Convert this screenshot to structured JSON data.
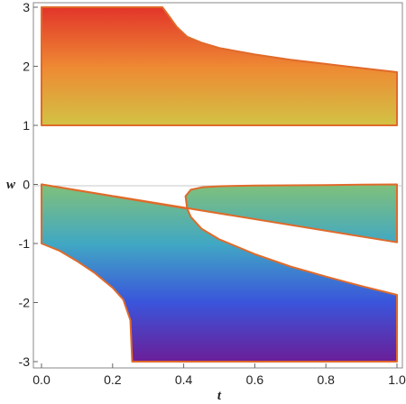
{
  "chart_data": {
    "type": "area",
    "title": "",
    "xlabel": "t",
    "ylabel": "w",
    "xlim": [
      0,
      1
    ],
    "ylim": [
      -3,
      3
    ],
    "x_ticks": [
      "0.0",
      "0.2",
      "0.4",
      "0.6",
      "0.8",
      "1.0"
    ],
    "y_ticks": [
      "-3",
      "-2",
      "-1",
      "0",
      "1",
      "2",
      "3"
    ],
    "grid": false,
    "colors": {
      "region_fill": "spectral gradient by w (red at 3, yellow at 1, green at 0, blue at -2, purple at -3)",
      "region_outline": "#e06a2a",
      "zero_line": "#c8c8c8",
      "frame": "#888888"
    },
    "regions": [
      {
        "name": "",
        "boundary_t": [
          0,
          0.34,
          0.36,
          0.38,
          0.41,
          0.45,
          0.5,
          0.6,
          0.7,
          0.8,
          0.9,
          1.0,
          1.0,
          0
        ],
        "boundary_w": [
          3,
          3,
          2.84,
          2.67,
          2.5,
          2.4,
          2.31,
          2.2,
          2.11,
          2.04,
          1.97,
          1.9,
          1,
          1
        ]
      },
      {
        "name": "",
        "boundary_t": [
          0,
          0.41,
          0.405,
          0.42,
          0.45,
          0.5,
          0.6,
          0.7,
          0.8,
          0.9,
          1.0,
          1.0
        ],
        "boundary_w": [
          0,
          -0.41,
          -0.2,
          -0.09,
          -0.05,
          -0.03,
          -0.02,
          -0.015,
          -0.01,
          -0.005,
          0,
          -0.98
        ]
      },
      {
        "name": "",
        "boundary_t": [
          0,
          0.41,
          0.42,
          0.45,
          0.5,
          0.6,
          0.7,
          0.8,
          0.9,
          1.0,
          1.0,
          0.255,
          0.25,
          0.23,
          0.2,
          0.15,
          0.1,
          0.05,
          0
        ],
        "boundary_w": [
          0,
          -0.41,
          -0.55,
          -0.75,
          -0.93,
          -1.18,
          -1.39,
          -1.56,
          -1.72,
          -1.87,
          -3,
          -3,
          -2.3,
          -1.95,
          -1.75,
          -1.5,
          -1.3,
          -1.12,
          -1
        ]
      }
    ]
  }
}
